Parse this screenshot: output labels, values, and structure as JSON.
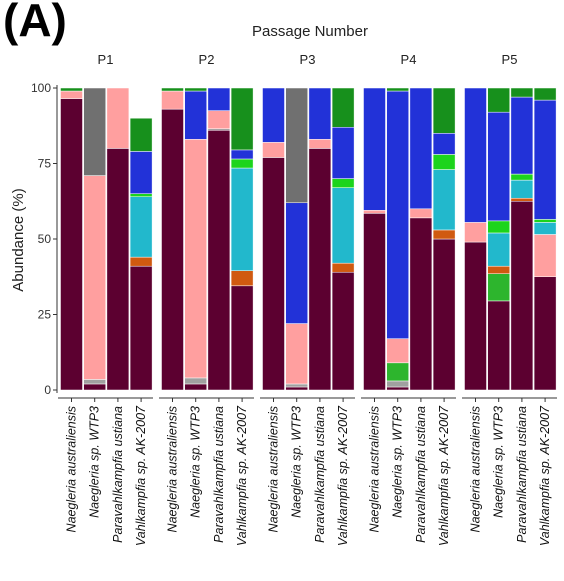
{
  "chart_data": {
    "type": "bar",
    "stacked": true,
    "faceted": true,
    "panel_label": "(A)",
    "title": "Passage Number",
    "ylabel": "Abundance (%)",
    "ylim": [
      0,
      100
    ],
    "yticks": [
      0,
      25,
      50,
      75,
      100
    ],
    "grid": false,
    "legend": "none",
    "facets": [
      "P1",
      "P2",
      "P3",
      "P4",
      "P5"
    ],
    "categories": [
      "Naegleria australiensis",
      "Naegleria sp. WTP3",
      "Paravahlkampfia ustiana",
      "Vahlkampfia sp. AK-2007"
    ],
    "series_colors": [
      "#5c0030",
      "#a0a0a0",
      "#2db52d",
      "#d05a10",
      "#ff9f9f",
      "#22b8cc",
      "#1cd41c",
      "#2232d8",
      "#707070",
      "#17901c"
    ],
    "bars": {
      "P1": [
        [
          96.5,
          0,
          0,
          0,
          2.5,
          0,
          0,
          0,
          0,
          1
        ],
        [
          2,
          1.5,
          0,
          0,
          67.5,
          0,
          0,
          0,
          29,
          0
        ],
        [
          80,
          0,
          0,
          0,
          20,
          0,
          0,
          0,
          0,
          0
        ],
        [
          41,
          0,
          0,
          3,
          0,
          20,
          1,
          14,
          0,
          11
        ]
      ],
      "P2": [
        [
          93,
          0,
          0,
          0,
          6,
          0,
          0,
          0,
          0,
          1
        ],
        [
          2,
          2,
          0,
          0,
          79,
          0,
          0,
          16,
          0,
          1
        ],
        [
          86,
          0.5,
          0,
          0,
          6,
          0,
          0,
          7.5,
          0,
          0
        ],
        [
          34.5,
          0,
          0,
          5,
          0,
          34,
          3,
          3,
          0,
          20.5
        ]
      ],
      "P3": [
        [
          77,
          0,
          0,
          0,
          5,
          0,
          0,
          18,
          0,
          0
        ],
        [
          1,
          1,
          0,
          0,
          20,
          0,
          0,
          40,
          38,
          0
        ],
        [
          80,
          0,
          0,
          0,
          3,
          0,
          0,
          17,
          0,
          0
        ],
        [
          39,
          0,
          0,
          3,
          0,
          25,
          3,
          17,
          0,
          13
        ]
      ],
      "P4": [
        [
          58.5,
          0,
          0,
          0,
          1,
          0,
          0,
          40.5,
          0,
          0
        ],
        [
          1,
          2,
          6,
          0,
          8,
          0,
          0,
          82,
          0,
          1
        ],
        [
          57,
          0,
          0,
          0,
          3,
          0,
          0,
          40,
          0,
          0
        ],
        [
          50,
          0,
          0,
          3,
          0,
          20,
          5,
          7,
          0,
          15
        ]
      ],
      "P5": [
        [
          49,
          0,
          0,
          0,
          6.5,
          0,
          0,
          44.5,
          0,
          0
        ],
        [
          29.5,
          0,
          9,
          2.5,
          0,
          11,
          4,
          36,
          0,
          8
        ],
        [
          62.5,
          0,
          0,
          1,
          0,
          6,
          2,
          25.5,
          0,
          3
        ],
        [
          37.5,
          0,
          0,
          0,
          14,
          4,
          1,
          39.5,
          0,
          4
        ]
      ]
    }
  }
}
